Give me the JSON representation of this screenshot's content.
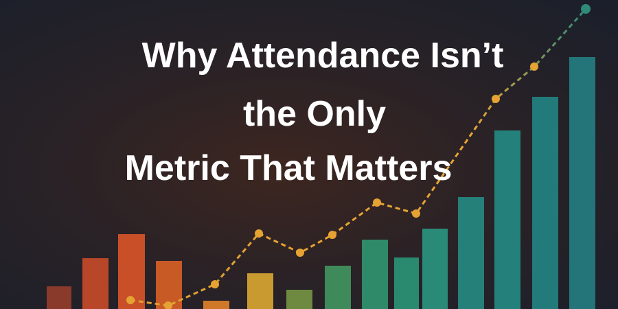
{
  "title": {
    "lines": [
      "Why Attendance Isn’t",
      "the Only",
      "Metric That Matters"
    ]
  }
}
